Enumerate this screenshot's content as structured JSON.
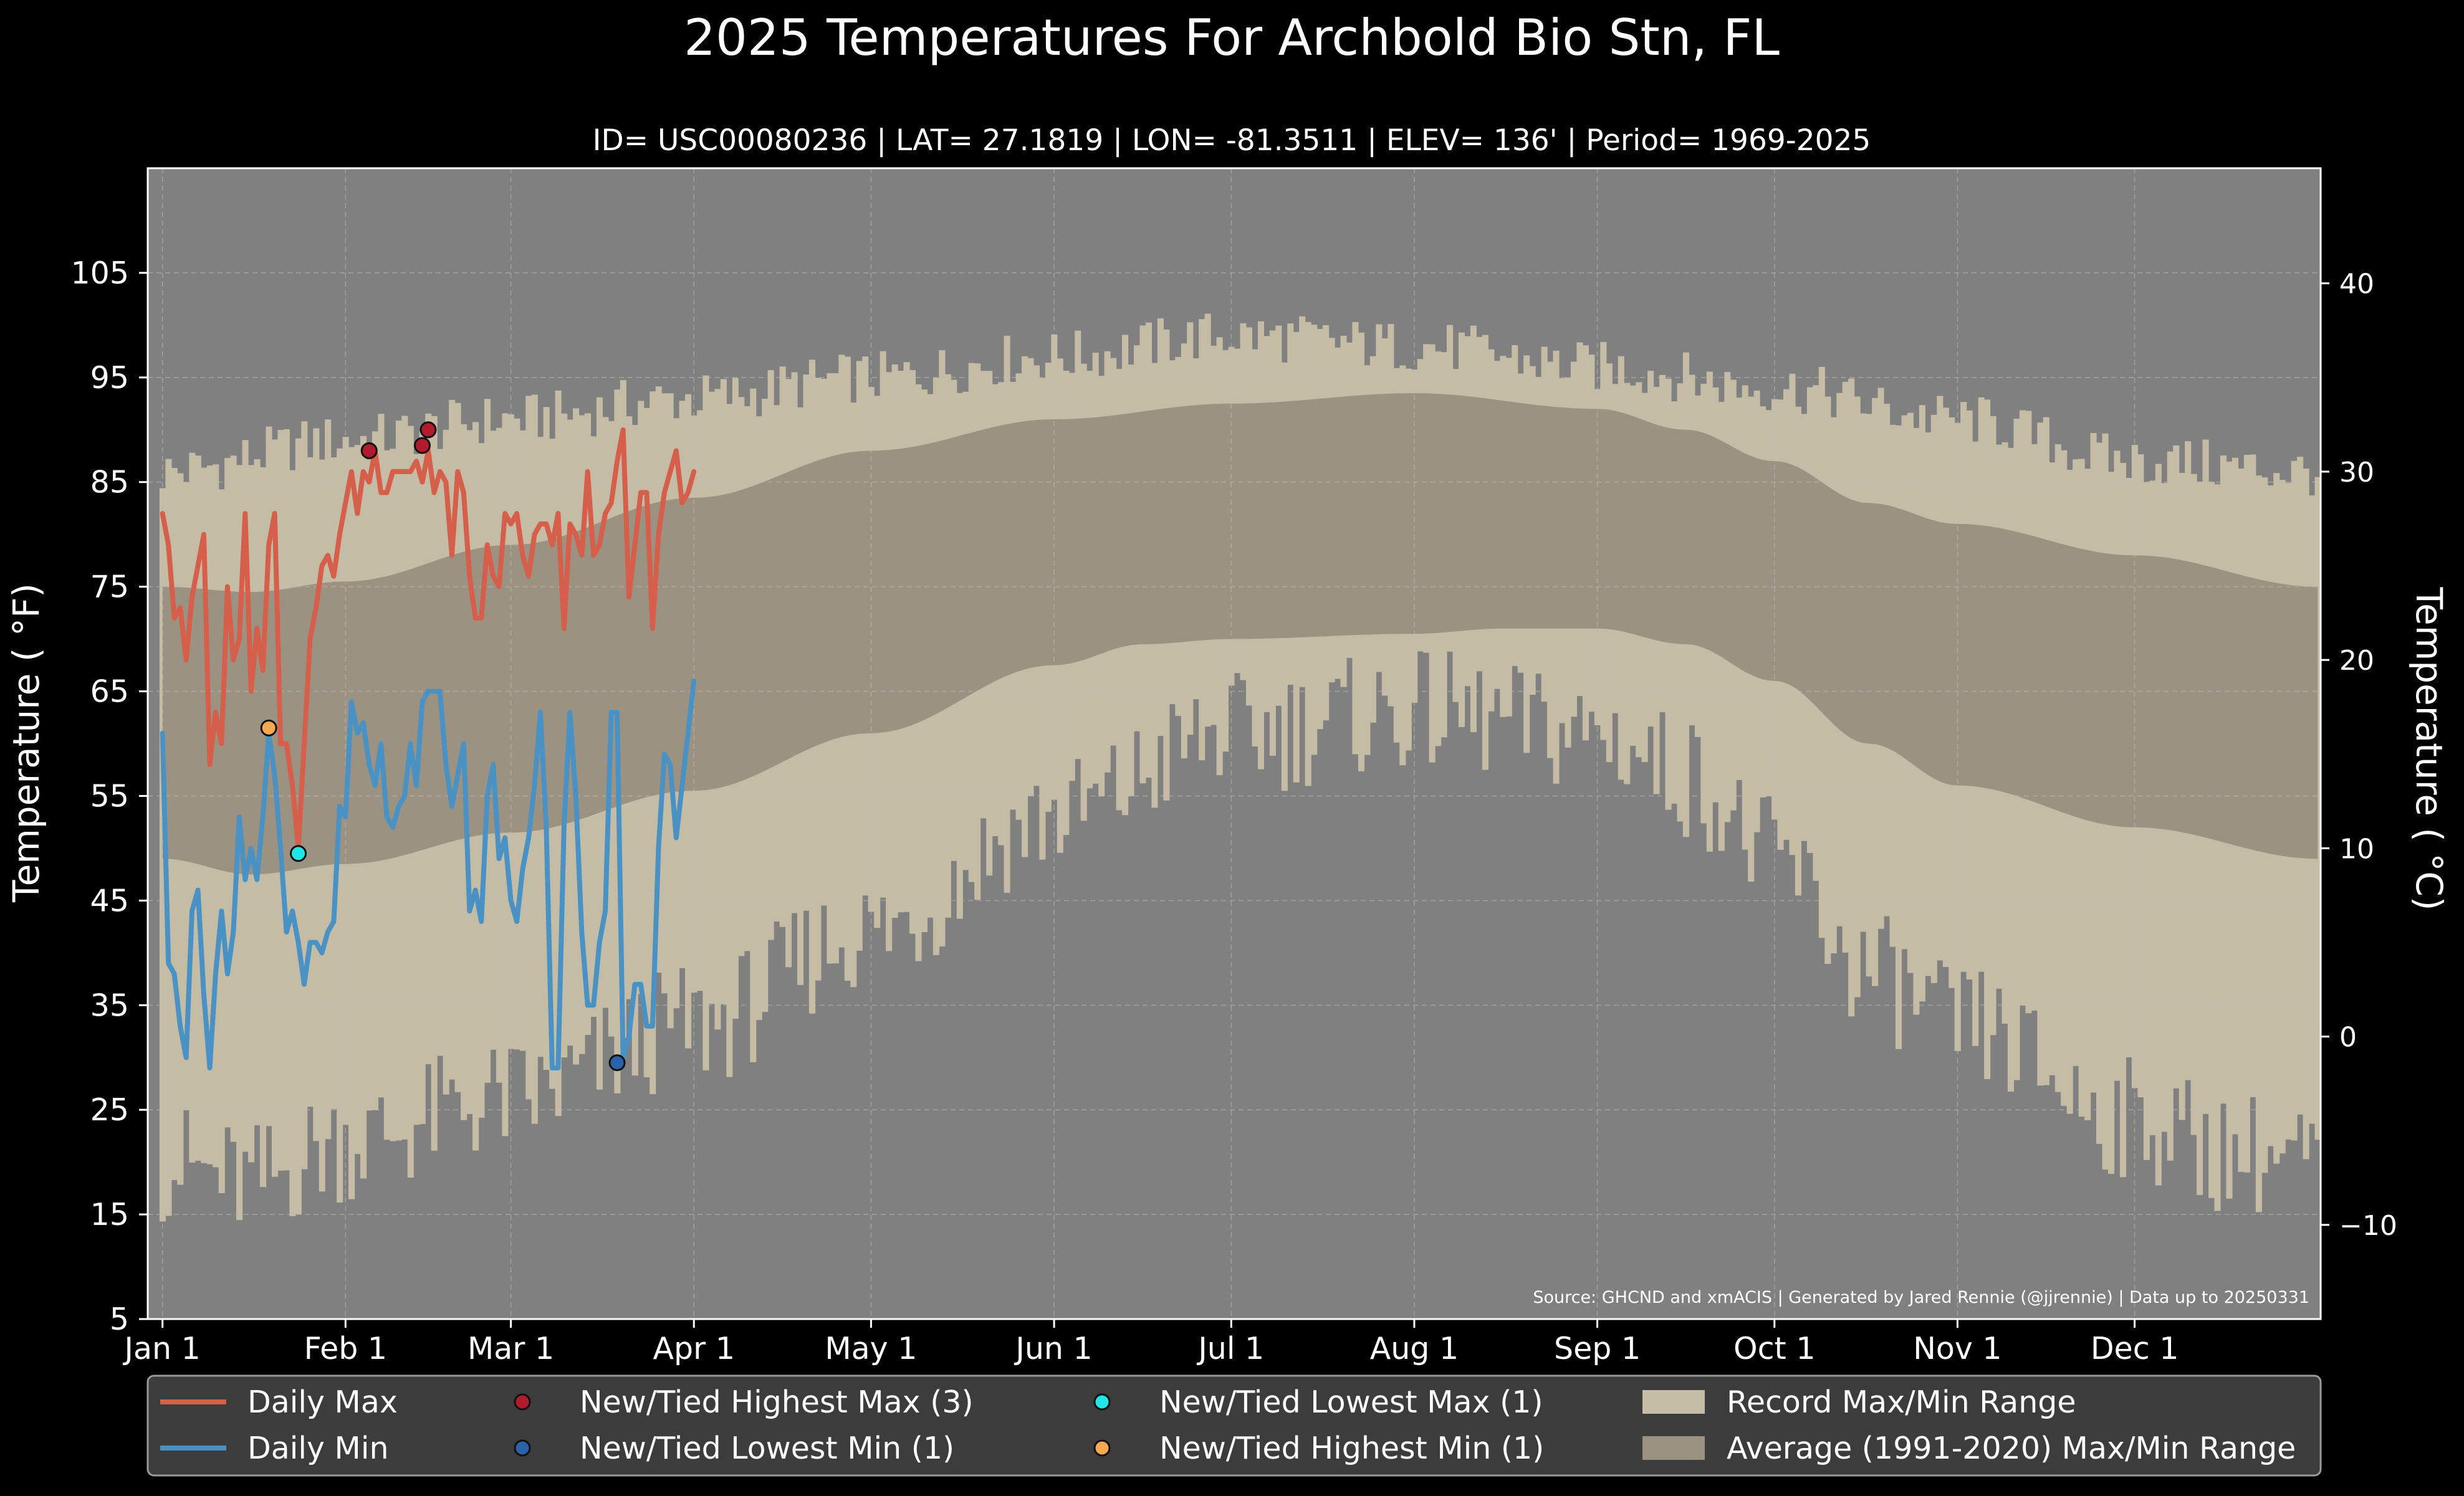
{
  "chart_data": {
    "type": "line",
    "title": "2025 Temperatures For Archbold Bio Stn, FL",
    "subtitle": "ID= USC00080236 | LAT= 27.1819 | LON= -81.3511 | ELEV= 136' | Period= 1969-2025",
    "ylabel": "Temperature ( °F)",
    "ylabel_right": "Temperature ( °C)",
    "ylim": [
      5,
      115
    ],
    "yticks": [
      5,
      15,
      25,
      35,
      45,
      55,
      65,
      75,
      85,
      95,
      105
    ],
    "yticks_right": [
      -10,
      0,
      10,
      20,
      30,
      40
    ],
    "xlim": [
      -2.5,
      365.5
    ],
    "xticks": [
      {
        "label": "Jan 1",
        "day": 0
      },
      {
        "label": "Feb 1",
        "day": 31
      },
      {
        "label": "Mar 1",
        "day": 59
      },
      {
        "label": "Apr 1",
        "day": 90
      },
      {
        "label": "May 1",
        "day": 120
      },
      {
        "label": "Jun 1",
        "day": 151
      },
      {
        "label": "Jul 1",
        "day": 181
      },
      {
        "label": "Aug 1",
        "day": 212
      },
      {
        "label": "Sep 1",
        "day": 243
      },
      {
        "label": "Oct 1",
        "day": 273
      },
      {
        "label": "Nov 1",
        "day": 304
      },
      {
        "label": "Dec 1",
        "day": 334
      }
    ],
    "grid": true,
    "source_note": "Source: GHCND and xmACIS | Generated by Jared Rennie (@jjrennie) | Data up to 20250331",
    "colors": {
      "background": "#000000",
      "plot_bg": "#808080",
      "record_range": "#c5bca6",
      "normal_range": "#9c9282",
      "daily_max": "#d65f4b",
      "daily_min": "#4a92c4",
      "record_high_max": "#b01c2e",
      "record_low_min": "#2a62a8",
      "record_low_max": "#22e6e6",
      "record_high_min": "#f5a850",
      "legend_bg": "#3c3c3c",
      "text": "#ffffff"
    },
    "record_max_anchors": [
      [
        0,
        86
      ],
      [
        31,
        89
      ],
      [
        59,
        91
      ],
      [
        90,
        93
      ],
      [
        120,
        95
      ],
      [
        151,
        97
      ],
      [
        181,
        99
      ],
      [
        212,
        98
      ],
      [
        243,
        96
      ],
      [
        273,
        94
      ],
      [
        304,
        91
      ],
      [
        334,
        87
      ],
      [
        365,
        86
      ]
    ],
    "record_min_anchors": [
      [
        0,
        20
      ],
      [
        15,
        18
      ],
      [
        31,
        22
      ],
      [
        59,
        26
      ],
      [
        90,
        33
      ],
      [
        120,
        42
      ],
      [
        151,
        53
      ],
      [
        181,
        61
      ],
      [
        212,
        63
      ],
      [
        243,
        61
      ],
      [
        258,
        57
      ],
      [
        273,
        49
      ],
      [
        289,
        38
      ],
      [
        304,
        33
      ],
      [
        334,
        24
      ],
      [
        350,
        21
      ],
      [
        365,
        20
      ]
    ],
    "record_noise": 2.5,
    "normal_max_anchors": [
      [
        0,
        75
      ],
      [
        15,
        74.5
      ],
      [
        31,
        75.5
      ],
      [
        59,
        79
      ],
      [
        90,
        83.5
      ],
      [
        120,
        88
      ],
      [
        151,
        91
      ],
      [
        181,
        92.5
      ],
      [
        212,
        93.5
      ],
      [
        243,
        92
      ],
      [
        258,
        90
      ],
      [
        273,
        87
      ],
      [
        289,
        83
      ],
      [
        304,
        81
      ],
      [
        334,
        78
      ],
      [
        365,
        75
      ]
    ],
    "normal_min_anchors": [
      [
        0,
        49
      ],
      [
        15,
        47.5
      ],
      [
        31,
        48.5
      ],
      [
        59,
        51.5
      ],
      [
        90,
        55.5
      ],
      [
        120,
        61
      ],
      [
        151,
        67.5
      ],
      [
        166,
        69.5
      ],
      [
        181,
        70
      ],
      [
        212,
        70.5
      ],
      [
        227,
        71
      ],
      [
        243,
        71
      ],
      [
        258,
        69.5
      ],
      [
        273,
        66
      ],
      [
        289,
        60
      ],
      [
        304,
        56
      ],
      [
        334,
        52
      ],
      [
        365,
        49
      ]
    ],
    "series": [
      {
        "name": "Daily Max",
        "start_day": 0,
        "values": [
          82,
          79,
          72,
          73,
          68,
          74,
          77,
          80,
          58,
          63,
          60,
          75,
          68,
          70,
          82,
          65,
          71,
          67,
          79,
          82,
          60,
          60,
          56,
          50,
          60,
          70,
          73,
          77,
          78,
          76,
          80,
          83,
          86,
          82,
          86,
          85,
          88,
          84,
          84,
          86,
          86,
          86,
          86,
          87,
          85,
          88,
          84,
          86,
          85,
          78,
          86,
          84,
          76,
          72,
          72,
          79,
          76,
          75,
          82,
          81,
          82,
          78,
          76,
          80,
          81,
          81,
          79,
          82,
          71,
          81,
          80,
          78,
          86,
          78,
          79,
          82,
          83,
          87,
          90,
          74,
          79,
          84,
          84,
          71,
          80,
          84,
          86,
          88,
          83,
          84,
          86
        ]
      },
      {
        "name": "Daily Min",
        "start_day": 0,
        "values": [
          61,
          39,
          38,
          33,
          30,
          44,
          46,
          36,
          29,
          38,
          44,
          38,
          42,
          53,
          47,
          50,
          47,
          53,
          61,
          57,
          50,
          42,
          44,
          41,
          37,
          41,
          41,
          40,
          42,
          43,
          54,
          53,
          64,
          61,
          62,
          58,
          56,
          60,
          53,
          52,
          54,
          55,
          60,
          56,
          64,
          65,
          65,
          65,
          58,
          54,
          57,
          60,
          44,
          46,
          43,
          55,
          58,
          49,
          51,
          45,
          43,
          48,
          51,
          56,
          63,
          52,
          29,
          29,
          52,
          63,
          55,
          42,
          35,
          35,
          41,
          44,
          63,
          63,
          30,
          32,
          37,
          37,
          33,
          33,
          50,
          59,
          58,
          51,
          56,
          61,
          66
        ]
      }
    ],
    "records": [
      {
        "name": "New/Tied Highest Max (3)",
        "color_key": "record_high_max",
        "points": [
          [
            35,
            88
          ],
          [
            44,
            88.5
          ],
          [
            45,
            90
          ]
        ]
      },
      {
        "name": "New/Tied Lowest Min (1)",
        "color_key": "record_low_min",
        "points": [
          [
            77,
            29.5
          ]
        ]
      },
      {
        "name": "New/Tied Lowest Max (1)",
        "color_key": "record_low_max",
        "points": [
          [
            23,
            49.5
          ]
        ]
      },
      {
        "name": "New/Tied Highest Min (1)",
        "color_key": "record_high_min",
        "points": [
          [
            18,
            61.5
          ]
        ]
      }
    ],
    "legend": {
      "placement": "bottom",
      "entries": [
        {
          "label": "Daily Max",
          "kind": "line",
          "color_key": "daily_max"
        },
        {
          "label": "Daily Min",
          "kind": "line",
          "color_key": "daily_min"
        },
        {
          "label": "New/Tied Highest Max (3)",
          "kind": "dot",
          "color_key": "record_high_max"
        },
        {
          "label": "New/Tied Lowest Min (1)",
          "kind": "dot",
          "color_key": "record_low_min"
        },
        {
          "label": "New/Tied Lowest Max (1)",
          "kind": "dot",
          "color_key": "record_low_max"
        },
        {
          "label": "New/Tied Highest Min (1)",
          "kind": "dot",
          "color_key": "record_high_min"
        },
        {
          "label": "Record Max/Min Range",
          "kind": "patch",
          "color_key": "record_range"
        },
        {
          "label": "Average (1991-2020) Max/Min Range",
          "kind": "patch",
          "color_key": "normal_range"
        }
      ]
    }
  }
}
